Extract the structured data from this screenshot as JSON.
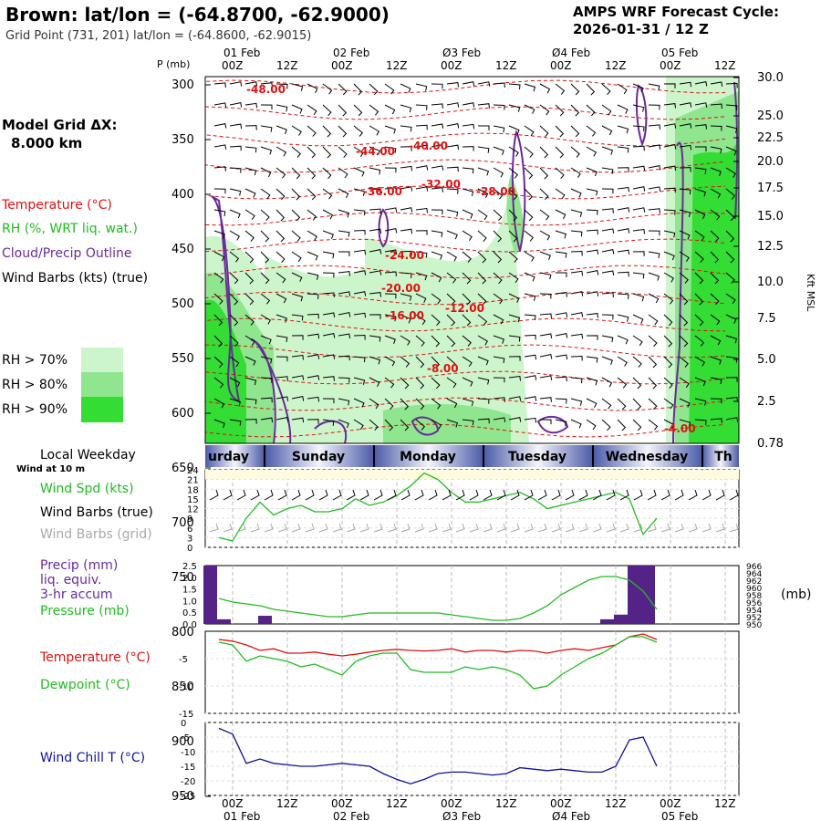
{
  "header": {
    "title": "Brown:  lat/lon = (-64.8700, -62.9000)",
    "grid_point": "Grid Point (731, 201) lat/lon = (-64.8600, -62.9015)",
    "cycle_label": "AMPS WRF Forecast Cycle:",
    "cycle_value": "2026-01-31 / 12  Z",
    "model_grid_label": "Model Grid ΔX:",
    "model_grid_value": "8.000 km"
  },
  "time_axis": {
    "top_dates": [
      "01 Feb",
      "02 Feb",
      "Ø3 Feb",
      "Ø4 Feb",
      "05 Feb"
    ],
    "hour_labels": [
      "00Z",
      "12Z",
      "00Z",
      "12Z",
      "00Z",
      "12Z",
      "00Z",
      "12Z",
      "00Z",
      "12Z"
    ],
    "bottom_dates": [
      "01 Feb",
      "02 Feb",
      "Ø3 Feb",
      "Ø4 Feb",
      "05 Feb"
    ]
  },
  "legend": {
    "temperature": "Temperature (°C)",
    "rh": "RH (%, WRT liq. wat.)",
    "cloud": "Cloud/Precip Outline",
    "wind": "Wind Barbs (kts) (true)",
    "rh70": "RH > 70%",
    "rh80": "RH > 80%",
    "rh90": "RH > 90%",
    "pressure_axis_label": "P (mb)",
    "height_axis_label": "Kft MSL"
  },
  "weekday": {
    "title": "Local Weekday",
    "wind_at": "Wind at 10 m",
    "days": [
      "urday",
      "Sunday",
      "Monday",
      "Tuesday",
      "Wednesday",
      "Th"
    ]
  },
  "panel_labels": {
    "wind_spd": "Wind Spd (kts)",
    "wind_barbs_true": "Wind Barbs (true)",
    "wind_barbs_grid": "Wind Barbs (grid)",
    "precip1": "Precip (mm)",
    "precip2": "liq. equiv.",
    "precip3": "3-hr accum",
    "pressure": "Pressure (mb)",
    "pressure_unit": "(mb)",
    "temperature": "Temperature (°C)",
    "dewpoint": "Dewpoint (°C)",
    "windchill": "Wind Chill T (°C)"
  },
  "colors": {
    "rh70": "#ccf5cc",
    "rh80": "#8fe68f",
    "rh90": "#33dd33",
    "temp": "#e01010",
    "rh_text": "#22bb22",
    "cloud": "#6a2a9a",
    "windchill": "#1010a0",
    "grid_barb": "#aaaaaa"
  },
  "chart_data": [
    {
      "type": "heatmap",
      "name": "cross-section",
      "y_pressure_ticks": [
        300,
        350,
        400,
        450,
        500,
        550,
        600,
        650,
        700,
        750,
        800,
        850,
        900,
        950
      ],
      "y_height_ticks": [
        "30.0",
        "25.0",
        "22.5",
        "20.0",
        "17.5",
        "15.0",
        "12.5",
        "10.0",
        "7.5",
        "5.0",
        "2.5",
        "0.78"
      ],
      "temperature_contour_labels": [
        "-48.00",
        "-44.00",
        "-40.00",
        "-36.00",
        "-32.00",
        "-28.00",
        "-24.00",
        "-20.00",
        "-16.00",
        "-12.00",
        "-8.00",
        "-4.00"
      ]
    },
    {
      "type": "line",
      "name": "wind-speed",
      "ylim": [
        0,
        24
      ],
      "yticks": [
        24,
        21,
        18,
        15,
        12,
        9,
        6,
        3,
        0
      ],
      "x": [
        0,
        3,
        6,
        9,
        12,
        15,
        18,
        21,
        24,
        27,
        30,
        33,
        36,
        39,
        42,
        45,
        48,
        51,
        54,
        57,
        60,
        63,
        66,
        69,
        72,
        75,
        78,
        81,
        84,
        87,
        90,
        93,
        96
      ],
      "values": [
        3,
        2,
        9,
        14,
        10,
        12,
        13,
        11,
        11,
        12,
        15,
        13,
        14,
        16,
        19,
        23,
        21,
        17,
        14,
        14,
        15,
        16,
        17,
        15,
        12,
        13,
        14,
        15,
        16,
        17,
        15,
        4,
        9
      ]
    },
    {
      "type": "bar",
      "name": "precip",
      "ylim": [
        0,
        2.5
      ],
      "yticks": [
        "2.5",
        "2.0",
        "1.5",
        "1.0",
        "0.5",
        "0.0"
      ],
      "right_ticks": [
        "966",
        "964",
        "962",
        "960",
        "958",
        "956",
        "954",
        "952",
        "950"
      ],
      "x": [
        0,
        3,
        6,
        9,
        12,
        15,
        18,
        21,
        24,
        27,
        30,
        33,
        36,
        39,
        42,
        45,
        48,
        51,
        54,
        57,
        60,
        63,
        66,
        69,
        72,
        75,
        78,
        81,
        84,
        87,
        90,
        93,
        96
      ],
      "precip": [
        2.5,
        0.2,
        0,
        0,
        0.35,
        0,
        0,
        0,
        0,
        0,
        0,
        0,
        0,
        0,
        0,
        0,
        0,
        0,
        0,
        0,
        0,
        0,
        0,
        0,
        0,
        0,
        0,
        0,
        0,
        0.2,
        0.4,
        2.5,
        2.5
      ],
      "pressure": [
        957,
        956,
        955.5,
        955,
        954,
        953.5,
        953,
        952.5,
        952,
        952,
        952.5,
        953,
        953,
        953,
        953,
        953,
        953,
        952.5,
        952,
        951.5,
        951,
        951,
        951.5,
        953,
        955,
        958,
        960,
        962,
        963,
        963,
        962,
        959,
        954
      ]
    },
    {
      "type": "line",
      "name": "temperature",
      "ylim": [
        -15,
        0
      ],
      "yticks": [
        "-5",
        "-10",
        "-15"
      ],
      "x": [
        0,
        3,
        6,
        9,
        12,
        15,
        18,
        21,
        24,
        27,
        30,
        33,
        36,
        39,
        42,
        45,
        48,
        51,
        54,
        57,
        60,
        63,
        66,
        69,
        72,
        75,
        78,
        81,
        84,
        87,
        90,
        93,
        96
      ],
      "series": [
        {
          "name": "Temperature (°C)",
          "values": [
            -1.5,
            -1.8,
            -2.5,
            -3.5,
            -3.2,
            -4,
            -4,
            -3.8,
            -4.2,
            -4.5,
            -4.2,
            -3.8,
            -3.5,
            -3.3,
            -3.5,
            -3.6,
            -3.5,
            -3.2,
            -3.8,
            -3.5,
            -3.5,
            -3.8,
            -3.5,
            -3.6,
            -4,
            -3.5,
            -3.2,
            -3.5,
            -3,
            -2.5,
            -1,
            -0.5,
            -1.5
          ]
        },
        {
          "name": "Dewpoint (°C)",
          "values": [
            -2,
            -2.5,
            -5.5,
            -4.5,
            -5,
            -5.5,
            -6.5,
            -6,
            -7,
            -8,
            -5.5,
            -4.5,
            -4,
            -4,
            -7,
            -7.5,
            -7.5,
            -7.5,
            -6.5,
            -7,
            -6.5,
            -7,
            -8,
            -10.5,
            -10,
            -8,
            -6.5,
            -5,
            -4,
            -2.5,
            -1,
            -1,
            -2
          ]
        }
      ]
    },
    {
      "type": "line",
      "name": "wind-chill",
      "ylim": [
        -25,
        0
      ],
      "yticks": [
        "0",
        "-5",
        "-10",
        "-15",
        "-20",
        "-25"
      ],
      "x": [
        0,
        3,
        6,
        9,
        12,
        15,
        18,
        21,
        24,
        27,
        30,
        33,
        36,
        39,
        42,
        45,
        48,
        51,
        54,
        57,
        60,
        63,
        66,
        69,
        72,
        75,
        78,
        81,
        84,
        87,
        90,
        93,
        96
      ],
      "values": [
        -2,
        -4,
        -14,
        -12.5,
        -14,
        -14.5,
        -15,
        -15,
        -14.5,
        -14,
        -14.5,
        -15,
        -17.5,
        -19.5,
        -21,
        -19.5,
        -17.5,
        -17,
        -17,
        -17.5,
        -18,
        -17.5,
        -15.5,
        -16,
        -16.5,
        -16,
        -16.5,
        -17,
        -17,
        -15,
        -6,
        -5,
        -15
      ]
    }
  ]
}
